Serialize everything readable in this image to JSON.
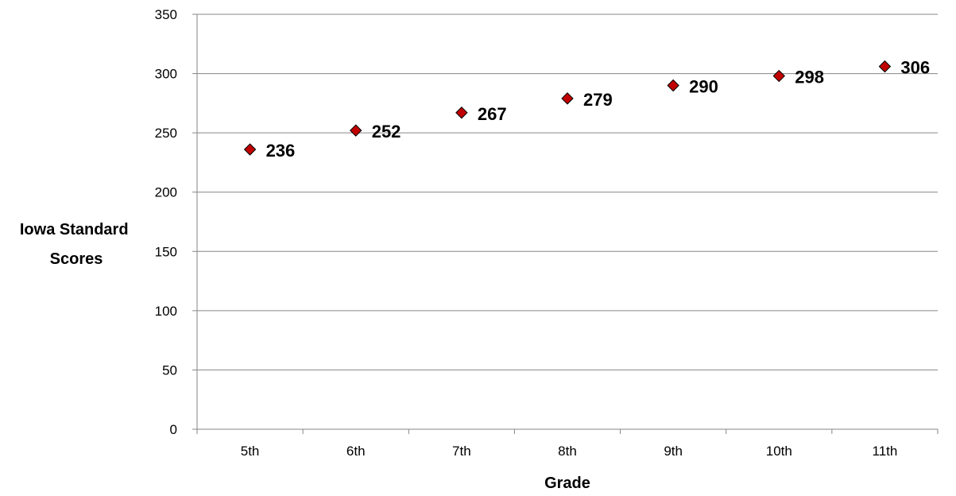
{
  "chart_data": {
    "type": "scatter",
    "title": "",
    "xlabel": "Grade",
    "ylabel": "Iowa Standard Scores",
    "ylabel_lines": [
      "Iowa Standard",
      "Scores"
    ],
    "categories": [
      "5th",
      "6th",
      "7th",
      "8th",
      "9th",
      "10th",
      "11th"
    ],
    "values": [
      236,
      252,
      267,
      279,
      290,
      298,
      306
    ],
    "data_labels": [
      "236",
      "252",
      "267",
      "279",
      "290",
      "298",
      "306"
    ],
    "ylim": [
      0,
      350
    ],
    "y_ticks": [
      0,
      50,
      100,
      150,
      200,
      250,
      300,
      350
    ],
    "grid": true,
    "legend": "none",
    "marker": "diamond",
    "marker_color": "#c00000"
  }
}
